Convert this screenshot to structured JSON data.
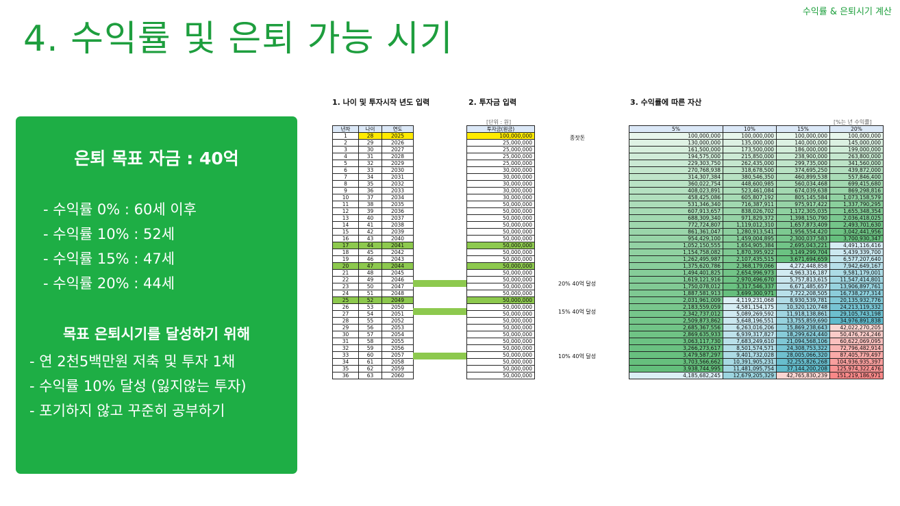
{
  "header": {
    "tag": "수익률 & 은퇴시기 계산",
    "title": "4. 수익률 및 은퇴 가능 시기"
  },
  "summary": {
    "goal": "은퇴 목표 자금 : 40억",
    "rates": [
      "- 수익률   0% : 60세 이후",
      "- 수익률 10% : 52세",
      "- 수익률 15% : 47세",
      "- 수익률 20% : 44세"
    ],
    "subtitle": "목표 은퇴시기를 달성하기 위해",
    "steps": [
      "- 연 2천5백만원 저축 및 투자 1채",
      "- 수익률 10% 달성 (잃지않는 투자)",
      "- 포기하지 않고 꾸준히 공부하기"
    ]
  },
  "sections": {
    "s1": "1. 나이 및 투자시작 년도 입력",
    "s2": "2. 투자금 입력",
    "s3": "3. 수익률에 따른 자산"
  },
  "units": {
    "won": "[단위 : 원]",
    "rate": "[%는 년 수익률]"
  },
  "table1": {
    "headers": [
      "년차",
      "나이",
      "연도"
    ],
    "ages": [
      "28",
      "29",
      "30",
      "31",
      "32",
      "33",
      "34",
      "35",
      "36",
      "37",
      "38",
      "39",
      "40",
      "41",
      "42",
      "43",
      "44",
      "45",
      "46",
      "47",
      "48",
      "49",
      "50",
      "51",
      "52",
      "53",
      "54",
      "55",
      "56",
      "57",
      "58",
      "59",
      "60",
      "61",
      "62",
      "63"
    ],
    "years": [
      "2025",
      "2026",
      "2027",
      "2028",
      "2029",
      "2030",
      "2031",
      "2032",
      "2033",
      "2034",
      "2035",
      "2036",
      "2037",
      "2038",
      "2039",
      "2040",
      "2041",
      "2042",
      "2043",
      "2044",
      "2045",
      "2046",
      "2047",
      "2048",
      "2049",
      "2050",
      "2051",
      "2052",
      "2053",
      "2054",
      "2055",
      "2056",
      "2057",
      "2058",
      "2059",
      "2060"
    ]
  },
  "table2": {
    "header": "투자금(원금)",
    "values": [
      "100,000,000",
      "25,000,000",
      "25,000,000",
      "25,000,000",
      "25,000,000",
      "30,000,000",
      "30,000,000",
      "30,000,000",
      "30,000,000",
      "30,000,000",
      "50,000,000",
      "50,000,000",
      "50,000,000",
      "50,000,000",
      "50,000,000",
      "50,000,000",
      "50,000,000",
      "50,000,000",
      "50,000,000",
      "50,000,000",
      "50,000,000",
      "50,000,000",
      "50,000,000",
      "50,000,000",
      "50,000,000",
      "50,000,000",
      "50,000,000",
      "50,000,000",
      "50,000,000",
      "50,000,000",
      "50,000,000",
      "50,000,000",
      "50,000,000",
      "50,000,000",
      "50,000,000",
      "50,000,000"
    ]
  },
  "notes": {
    "seed": "종잣돈",
    "n20": "20% 40억 달성",
    "n15": "15% 40억 달성",
    "n10": "10% 40억 달성"
  },
  "table3": {
    "headers": [
      "5%",
      "10%",
      "15%",
      "20%"
    ],
    "r5": [
      "100,000,000",
      "130,000,000",
      "161,500,000",
      "194,575,000",
      "229,303,750",
      "270,768,938",
      "314,307,384",
      "360,022,754",
      "408,023,891",
      "458,425,086",
      "531,346,340",
      "607,913,657",
      "688,309,340",
      "772,724,807",
      "861,361,047",
      "954,429,100",
      "1,052,150,555",
      "1,154,758,082",
      "1,262,495,987",
      "1,375,620,786",
      "1,494,401,825",
      "1,619,121,916",
      "1,750,078,012",
      "1,887,581,913",
      "2,031,961,009",
      "2,183,559,059",
      "2,342,737,012",
      "2,509,873,862",
      "2,685,367,556",
      "2,869,635,933",
      "3,063,117,730",
      "3,266,273,617",
      "3,479,587,297",
      "3,703,566,662",
      "3,938,744,995",
      "4,185,682,245"
    ],
    "r10": [
      "100,000,000",
      "135,000,000",
      "173,500,000",
      "215,850,000",
      "262,435,000",
      "318,678,500",
      "380,546,350",
      "448,600,985",
      "523,461,084",
      "605,807,192",
      "716,387,911",
      "838,026,702",
      "971,829,372",
      "1,119,012,310",
      "1,280,913,541",
      "1,459,004,895",
      "1,654,905,384",
      "1,870,395,922",
      "2,107,435,515",
      "2,368,179,066",
      "2,654,996,973",
      "2,970,496,670",
      "3,317,546,337",
      "3,699,300,971",
      "4,119,231,068",
      "4,581,154,175",
      "5,089,269,592",
      "5,648,196,551",
      "6,263,016,206",
      "6,939,317,827",
      "7,683,249,610",
      "8,501,574,571",
      "9,401,732,028",
      "10,391,905,231",
      "11,481,095,754",
      "12,679,205,329"
    ],
    "r15": [
      "100,000,000",
      "140,000,000",
      "186,000,000",
      "238,900,000",
      "299,735,000",
      "374,695,250",
      "460,899,538",
      "560,034,468",
      "674,039,638",
      "805,145,584",
      "975,917,422",
      "1,172,305,035",
      "1,398,150,790",
      "1,657,873,409",
      "1,956,554,420",
      "2,300,037,583",
      "2,695,043,221",
      "3,149,299,704",
      "3,671,694,659",
      "4,272,448,858",
      "4,963,316,187",
      "5,757,813,615",
      "6,671,485,657",
      "7,722,208,505",
      "8,930,539,781",
      "10,320,120,748",
      "11,918,138,861",
      "13,755,859,690",
      "15,869,238,643",
      "18,299,624,440",
      "21,094,568,106",
      "24,308,753,322",
      "28,005,066,320",
      "32,255,826,268",
      "37,144,200,208",
      "42,765,830,239"
    ],
    "r20": [
      "100,000,000",
      "145,000,000",
      "199,000,000",
      "263,800,000",
      "341,560,000",
      "439,872,000",
      "557,846,400",
      "699,415,680",
      "869,298,816",
      "1,073,158,579",
      "1,337,790,295",
      "1,655,348,354",
      "2,036,418,025",
      "2,493,701,630",
      "3,042,441,956",
      "3,700,930,347",
      "4,491,116,416",
      "5,439,339,700",
      "6,577,207,640",
      "7,942,649,167",
      "9,581,179,001",
      "11,547,414,801",
      "13,906,897,761",
      "16,738,277,314",
      "20,135,932,776",
      "24,213,119,332",
      "29,105,743,198",
      "34,976,891,838",
      "42,022,270,205",
      "50,476,724,246",
      "60,622,069,095",
      "72,796,482,914",
      "87,405,779,497",
      "104,936,935,397",
      "125,974,322,476",
      "151,219,186,971"
    ]
  },
  "colors": {
    "green": "#1eae45",
    "yellow": "#ffeb00",
    "highlight": "#8dc94e",
    "heat_green": "#63be7b",
    "heat_blue": "#5bb8c9",
    "heat_red": "#f8696b"
  }
}
